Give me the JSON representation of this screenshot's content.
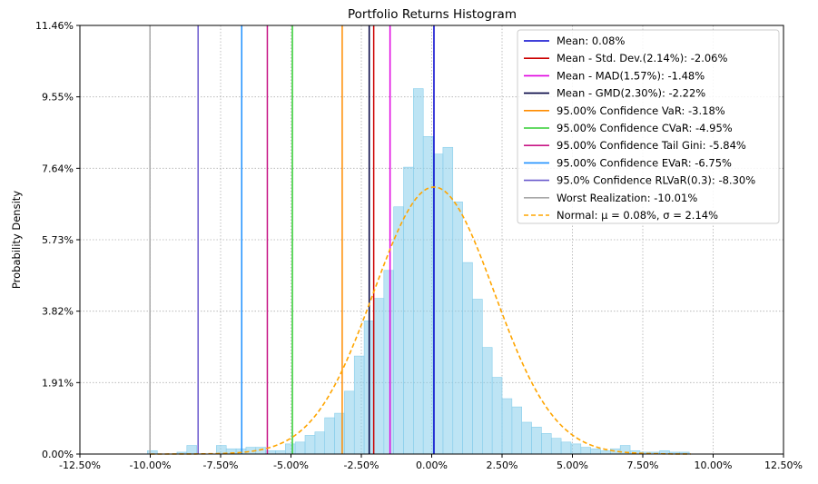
{
  "chart_data": {
    "type": "bar",
    "title": "Portfolio Returns Histogram",
    "xlabel": "",
    "ylabel": "Probability Density",
    "xlim": [
      -0.125,
      0.125
    ],
    "ylim": [
      0,
      0.1146
    ],
    "x_ticks": [
      -0.125,
      -0.1,
      -0.075,
      -0.05,
      -0.025,
      0.0,
      0.025,
      0.05,
      0.075,
      0.1,
      0.125
    ],
    "x_tick_labels": [
      "-12.50%",
      "-10.00%",
      "-7.50%",
      "-5.00%",
      "-2.50%",
      "0.00%",
      "2.50%",
      "5.00%",
      "7.50%",
      "10.00%",
      "12.50%"
    ],
    "y_ticks": [
      0,
      0.0191,
      0.0382,
      0.0573,
      0.0764,
      0.0955,
      0.1146
    ],
    "y_tick_labels": [
      "0.00%",
      "1.91%",
      "3.82%",
      "5.73%",
      "7.64%",
      "9.55%",
      "11.46%"
    ],
    "grid": true,
    "legend_position": "top-right",
    "histogram": {
      "color": "#87ceeb",
      "bins": [
        [
          -0.101,
          -0.0975,
          0.0009
        ],
        [
          -0.0905,
          -0.087,
          0.0005
        ],
        [
          -0.087,
          -0.0835,
          0.0023
        ],
        [
          -0.0765,
          -0.073,
          0.0023
        ],
        [
          -0.073,
          -0.0695,
          0.0014
        ],
        [
          -0.0695,
          -0.066,
          0.0014
        ],
        [
          -0.066,
          -0.0625,
          0.0018
        ],
        [
          -0.0625,
          -0.059,
          0.0018
        ],
        [
          -0.059,
          -0.0555,
          0.0009
        ],
        [
          -0.0555,
          -0.052,
          0.0009
        ],
        [
          -0.052,
          -0.0485,
          0.0027
        ],
        [
          -0.0485,
          -0.045,
          0.0032
        ],
        [
          -0.045,
          -0.0415,
          0.005
        ],
        [
          -0.0415,
          -0.038,
          0.0059
        ],
        [
          -0.038,
          -0.0345,
          0.0097
        ],
        [
          -0.0345,
          -0.031,
          0.0109
        ],
        [
          -0.031,
          -0.0275,
          0.0168
        ],
        [
          -0.0275,
          -0.024,
          0.0262
        ],
        [
          -0.024,
          -0.0205,
          0.0356
        ],
        [
          -0.0205,
          -0.017,
          0.0416
        ],
        [
          -0.017,
          -0.0135,
          0.0491
        ],
        [
          -0.0135,
          -0.01,
          0.0661
        ],
        [
          -0.01,
          -0.0065,
          0.0767
        ],
        [
          -0.0065,
          -0.003,
          0.0977
        ],
        [
          -0.003,
          0.0005,
          0.0849
        ],
        [
          0.0005,
          0.004,
          0.0802
        ],
        [
          0.004,
          0.0075,
          0.082
        ],
        [
          0.0075,
          0.011,
          0.0674
        ],
        [
          0.011,
          0.0145,
          0.0512
        ],
        [
          0.0145,
          0.018,
          0.0414
        ],
        [
          0.018,
          0.0215,
          0.0285
        ],
        [
          0.0215,
          0.025,
          0.0205
        ],
        [
          0.025,
          0.0285,
          0.0148
        ],
        [
          0.0285,
          0.032,
          0.0126
        ],
        [
          0.032,
          0.0355,
          0.0085
        ],
        [
          0.0355,
          0.039,
          0.0072
        ],
        [
          0.039,
          0.0425,
          0.0055
        ],
        [
          0.0425,
          0.046,
          0.0042
        ],
        [
          0.046,
          0.0495,
          0.0032
        ],
        [
          0.0495,
          0.053,
          0.0027
        ],
        [
          0.053,
          0.0565,
          0.0018
        ],
        [
          0.0565,
          0.06,
          0.0014
        ],
        [
          0.06,
          0.0635,
          0.0009
        ],
        [
          0.0635,
          0.067,
          0.0014
        ],
        [
          0.067,
          0.0705,
          0.0023
        ],
        [
          0.0705,
          0.074,
          0.0009
        ],
        [
          0.074,
          0.0775,
          0.0005
        ],
        [
          0.0775,
          0.081,
          0.0005
        ],
        [
          0.081,
          0.0845,
          0.0009
        ],
        [
          0.0845,
          0.088,
          0.0005
        ],
        [
          0.088,
          0.0915,
          0.0005
        ]
      ]
    },
    "series": [
      {
        "name": "Mean: 0.08%",
        "kind": "vline",
        "x": 0.0008,
        "color": "#0000cd"
      },
      {
        "name": "Mean - Std. Dev.(2.14%): -2.06%",
        "kind": "vline",
        "x": -0.0206,
        "color": "#cc0000"
      },
      {
        "name": "Mean - MAD(1.57%): -1.48%",
        "kind": "vline",
        "x": -0.0148,
        "color": "#e000e0"
      },
      {
        "name": "Mean - GMD(2.30%): -2.22%",
        "kind": "vline",
        "x": -0.0222,
        "color": "#000040"
      },
      {
        "name": "95.00% Confidence VaR: -3.18%",
        "kind": "vline",
        "x": -0.0318,
        "color": "#ff8c00"
      },
      {
        "name": "95.00% Confidence CVaR: -4.95%",
        "kind": "vline",
        "x": -0.0495,
        "color": "#32cd32"
      },
      {
        "name": "95.00% Confidence Tail Gini: -5.84%",
        "kind": "vline",
        "x": -0.0584,
        "color": "#c71585"
      },
      {
        "name": "95.00% Confidence EVaR: -6.75%",
        "kind": "vline",
        "x": -0.0675,
        "color": "#1e90ff"
      },
      {
        "name": "95.0% Confidence RLVaR(0.3): -8.30%",
        "kind": "vline",
        "x": -0.083,
        "color": "#6a5acd"
      },
      {
        "name": "Worst Realization: -10.01%",
        "kind": "vline",
        "x": -0.1001,
        "color": "#a9a9a9"
      },
      {
        "name": "Normal: μ = 0.08%, σ = 2.14%",
        "kind": "normal_curve",
        "mu": 0.0008,
        "sigma": 0.0214,
        "peak": 0.0714,
        "color": "#ffa500"
      }
    ]
  }
}
